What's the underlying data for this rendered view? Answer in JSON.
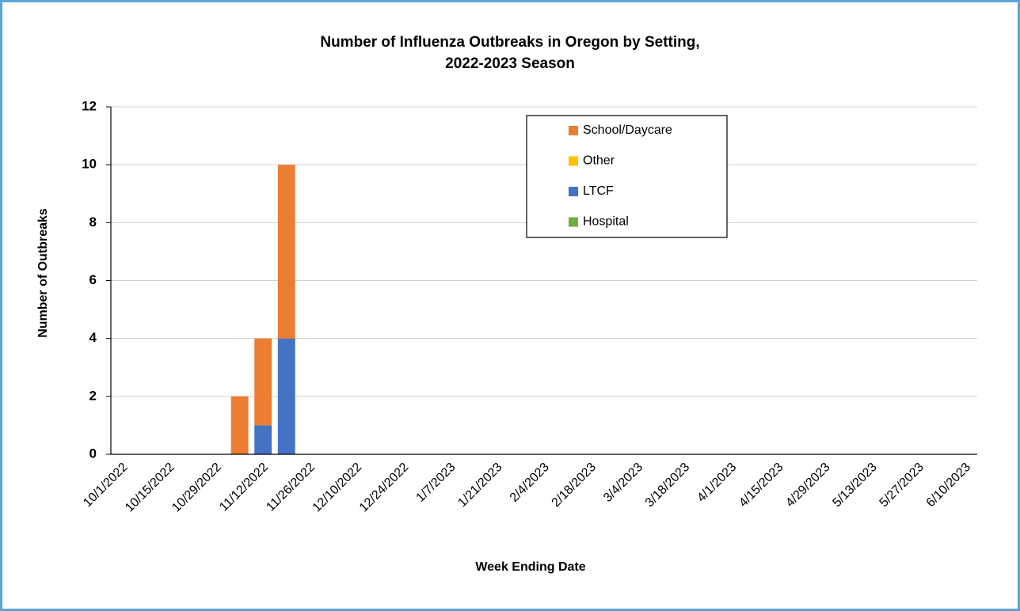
{
  "chart_data": {
    "type": "stacked_bar",
    "title": [
      "Number of Influenza Outbreaks in Oregon by Setting,",
      "2022-2023 Season"
    ],
    "x_label": "Week Ending Date",
    "y_label": "Number of Outbreaks",
    "categories": [
      "10/1/2022",
      null,
      "10/15/2022",
      null,
      "10/29/2022",
      null,
      "11/12/2022",
      null,
      "11/26/2022",
      null,
      "12/10/2022",
      null,
      "12/24/2022",
      null,
      "1/7/2023",
      null,
      "1/21/2023",
      null,
      "2/4/2023",
      null,
      "2/18/2023",
      null,
      "3/4/2023",
      null,
      "3/18/2023",
      null,
      "4/1/2023",
      null,
      "4/15/2023",
      null,
      "4/29/2023",
      null,
      "5/13/2023",
      null,
      "5/27/2023",
      null,
      "6/10/2023"
    ],
    "series": [
      {
        "name": "Hospital",
        "color": "#70ad47",
        "values": [
          0,
          0,
          0,
          0,
          0,
          0,
          0,
          0,
          0,
          0,
          0,
          0,
          0,
          0,
          0,
          0,
          0,
          0,
          0,
          0,
          0,
          0,
          0,
          0,
          0,
          0,
          0,
          0,
          0,
          0,
          0,
          0,
          0,
          0,
          0,
          0,
          0
        ]
      },
      {
        "name": "LTCF",
        "color": "#4472c4",
        "values": [
          0,
          0,
          0,
          0,
          0,
          0,
          1,
          4,
          0,
          0,
          0,
          0,
          0,
          0,
          0,
          0,
          0,
          0,
          0,
          0,
          0,
          0,
          0,
          0,
          0,
          0,
          0,
          0,
          0,
          0,
          0,
          0,
          0,
          0,
          0,
          0,
          0
        ]
      },
      {
        "name": "Other",
        "color": "#ffc000",
        "values": [
          0,
          0,
          0,
          0,
          0,
          0,
          0,
          0,
          0,
          0,
          0,
          0,
          0,
          0,
          0,
          0,
          0,
          0,
          0,
          0,
          0,
          0,
          0,
          0,
          0,
          0,
          0,
          0,
          0,
          0,
          0,
          0,
          0,
          0,
          0,
          0,
          0
        ]
      },
      {
        "name": "School/Daycare",
        "color": "#ed7d31",
        "values": [
          0,
          0,
          0,
          0,
          0,
          2,
          3,
          6,
          0,
          0,
          0,
          0,
          0,
          0,
          0,
          0,
          0,
          0,
          0,
          0,
          0,
          0,
          0,
          0,
          0,
          0,
          0,
          0,
          0,
          0,
          0,
          0,
          0,
          0,
          0,
          0,
          0
        ]
      }
    ],
    "ylim": [
      0,
      12
    ],
    "yticks": [
      0,
      2,
      4,
      6,
      8,
      10,
      12
    ],
    "grid": true,
    "legend": "top-right"
  }
}
